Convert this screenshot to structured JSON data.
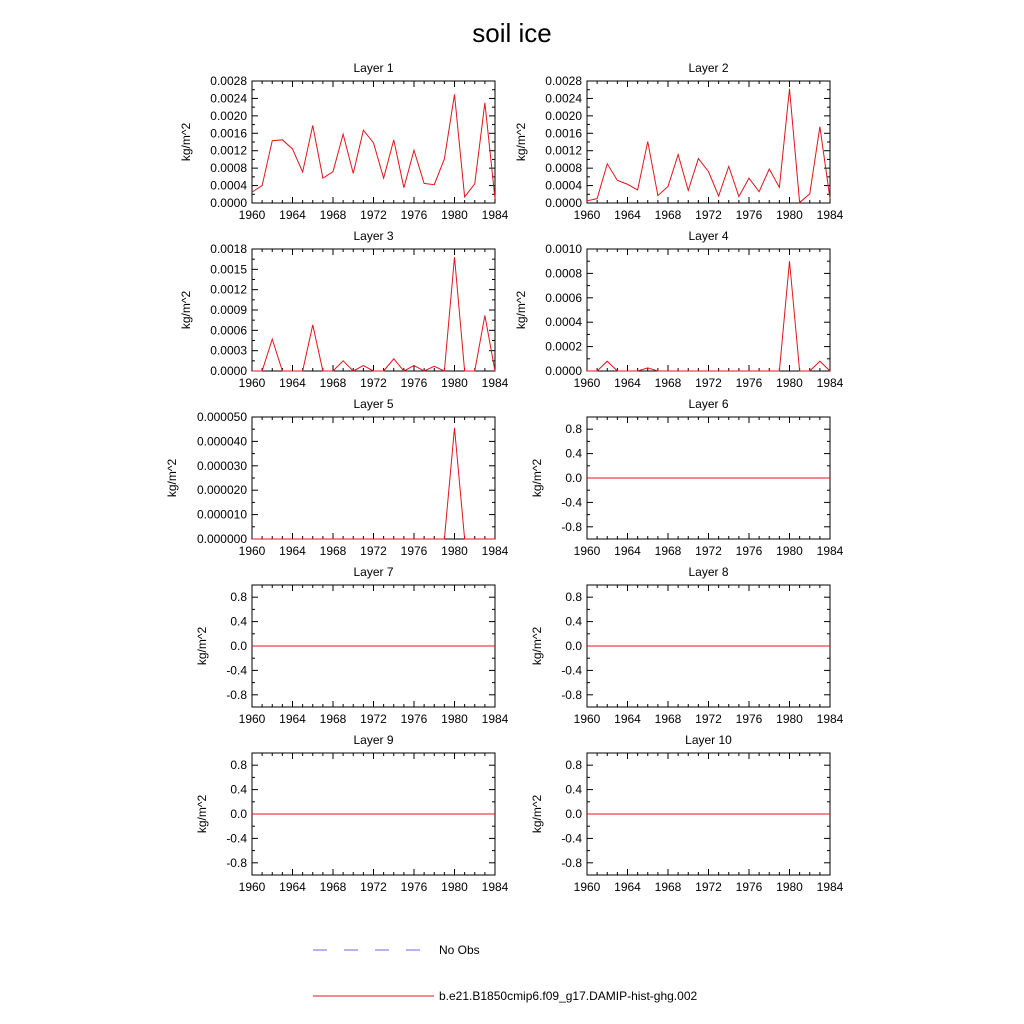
{
  "figure": {
    "title": "soil ice",
    "legend": [
      {
        "label": "No Obs",
        "color": "#6b6bd6",
        "dash": true
      },
      {
        "label": "b.e21.B1850cmip6.f09_g17.DAMIP-hist-ghg.002",
        "color": "#e0151c",
        "dash": false
      }
    ]
  },
  "chart_data": [
    {
      "type": "line",
      "title": "Layer 1",
      "ylabel": "kg/m^2",
      "xlim": [
        1960,
        1984
      ],
      "xticks": [
        1960,
        1964,
        1968,
        1972,
        1976,
        1980,
        1984
      ],
      "ylim": [
        0,
        0.0028
      ],
      "yticks": [
        0,
        0.0004,
        0.0008,
        0.0012,
        0.0016,
        0.002,
        0.0024,
        0.0028
      ],
      "ydecimals": 4,
      "series": [
        {
          "values": [
            0.00025,
            0.0004,
            0.00143,
            0.00145,
            0.00124,
            0.00071,
            0.00178,
            0.00057,
            0.00072,
            0.00158,
            0.00068,
            0.00167,
            0.00138,
            0.00057,
            0.00145,
            0.00035,
            0.00121,
            0.00045,
            0.00042,
            0.00101,
            0.00249,
            0.00014,
            0.00044,
            0.0023,
            0.0001
          ]
        }
      ]
    },
    {
      "type": "line",
      "title": "Layer 2",
      "ylabel": "kg/m^2",
      "xlim": [
        1960,
        1984
      ],
      "xticks": [
        1960,
        1964,
        1968,
        1972,
        1976,
        1980,
        1984
      ],
      "ylim": [
        0,
        0.0028
      ],
      "yticks": [
        0,
        0.0004,
        0.0008,
        0.0012,
        0.0016,
        0.002,
        0.0024,
        0.0028
      ],
      "ydecimals": 4,
      "series": [
        {
          "values": [
            5e-05,
            0.0001,
            0.0009,
            0.00052,
            0.00043,
            0.0003,
            0.00141,
            0.00017,
            0.00038,
            0.00111,
            0.00029,
            0.00102,
            0.00072,
            0.00016,
            0.00084,
            0.00015,
            0.00057,
            0.00026,
            0.00078,
            0.00036,
            0.00262,
            1e-05,
            0.00021,
            0.00175,
            0.0001
          ]
        }
      ]
    },
    {
      "type": "line",
      "title": "Layer 3",
      "ylabel": "kg/m^2",
      "xlim": [
        1960,
        1984
      ],
      "xticks": [
        1960,
        1964,
        1968,
        1972,
        1976,
        1980,
        1984
      ],
      "ylim": [
        0,
        0.0018
      ],
      "yticks": [
        0,
        0.0003,
        0.0006,
        0.0009,
        0.0012,
        0.0015,
        0.0018
      ],
      "ydecimals": 4,
      "series": [
        {
          "values": [
            0,
            0,
            0.00047,
            0,
            0,
            0,
            0.00068,
            0,
            0,
            0.00015,
            0,
            8e-05,
            0,
            0,
            0.00018,
            0,
            8e-05,
            0,
            7e-05,
            0,
            0.00168,
            0,
            0,
            0.00082,
            0
          ]
        }
      ]
    },
    {
      "type": "line",
      "title": "Layer 4",
      "ylabel": "kg/m^2",
      "xlim": [
        1960,
        1984
      ],
      "xticks": [
        1960,
        1964,
        1968,
        1972,
        1976,
        1980,
        1984
      ],
      "ylim": [
        0,
        0.001
      ],
      "yticks": [
        0,
        0.0002,
        0.0004,
        0.0006,
        0.0008,
        0.001
      ],
      "ydecimals": 4,
      "series": [
        {
          "values": [
            0,
            0,
            8e-05,
            0,
            0,
            0,
            2.5e-05,
            0,
            0,
            0,
            0,
            0,
            0,
            0,
            0,
            0,
            0,
            0,
            0,
            0,
            0.0009,
            0,
            0,
            8e-05,
            0
          ]
        }
      ]
    },
    {
      "type": "line",
      "title": "Layer 5",
      "ylabel": "kg/m^2",
      "xlim": [
        1960,
        1984
      ],
      "xticks": [
        1960,
        1964,
        1968,
        1972,
        1976,
        1980,
        1984
      ],
      "ylim": [
        0,
        5e-05
      ],
      "yticks": [
        0,
        1e-05,
        2e-05,
        3e-05,
        4e-05,
        5e-05
      ],
      "ydecimals": 6,
      "series": [
        {
          "values": [
            0,
            0,
            0,
            0,
            0,
            0,
            0,
            0,
            0,
            0,
            0,
            0,
            0,
            0,
            0,
            0,
            0,
            0,
            0,
            0,
            4.55e-05,
            0,
            0,
            0,
            0
          ]
        }
      ]
    },
    {
      "type": "line",
      "title": "Layer 6",
      "ylabel": "kg/m^2",
      "xlim": [
        1960,
        1984
      ],
      "xticks": [
        1960,
        1964,
        1968,
        1972,
        1976,
        1980,
        1984
      ],
      "ylim": [
        -1,
        1
      ],
      "yticks": [
        -0.8,
        -0.4,
        0,
        0.4,
        0.8
      ],
      "ydecimals": 1,
      "series": [
        {
          "values": [
            0,
            0,
            0,
            0,
            0,
            0,
            0,
            0,
            0,
            0,
            0,
            0,
            0,
            0,
            0,
            0,
            0,
            0,
            0,
            0,
            0,
            0,
            0,
            0,
            0
          ]
        }
      ]
    },
    {
      "type": "line",
      "title": "Layer 7",
      "ylabel": "kg/m^2",
      "xlim": [
        1960,
        1984
      ],
      "xticks": [
        1960,
        1964,
        1968,
        1972,
        1976,
        1980,
        1984
      ],
      "ylim": [
        -1,
        1
      ],
      "yticks": [
        -0.8,
        -0.4,
        0,
        0.4,
        0.8
      ],
      "ydecimals": 1,
      "series": [
        {
          "values": [
            0,
            0,
            0,
            0,
            0,
            0,
            0,
            0,
            0,
            0,
            0,
            0,
            0,
            0,
            0,
            0,
            0,
            0,
            0,
            0,
            0,
            0,
            0,
            0,
            0
          ]
        }
      ]
    },
    {
      "type": "line",
      "title": "Layer 8",
      "ylabel": "kg/m^2",
      "xlim": [
        1960,
        1984
      ],
      "xticks": [
        1960,
        1964,
        1968,
        1972,
        1976,
        1980,
        1984
      ],
      "ylim": [
        -1,
        1
      ],
      "yticks": [
        -0.8,
        -0.4,
        0,
        0.4,
        0.8
      ],
      "ydecimals": 1,
      "series": [
        {
          "values": [
            0,
            0,
            0,
            0,
            0,
            0,
            0,
            0,
            0,
            0,
            0,
            0,
            0,
            0,
            0,
            0,
            0,
            0,
            0,
            0,
            0,
            0,
            0,
            0,
            0
          ]
        }
      ]
    },
    {
      "type": "line",
      "title": "Layer 9",
      "ylabel": "kg/m^2",
      "xlim": [
        1960,
        1984
      ],
      "xticks": [
        1960,
        1964,
        1968,
        1972,
        1976,
        1980,
        1984
      ],
      "ylim": [
        -1,
        1
      ],
      "yticks": [
        -0.8,
        -0.4,
        0,
        0.4,
        0.8
      ],
      "ydecimals": 1,
      "series": [
        {
          "values": [
            0,
            0,
            0,
            0,
            0,
            0,
            0,
            0,
            0,
            0,
            0,
            0,
            0,
            0,
            0,
            0,
            0,
            0,
            0,
            0,
            0,
            0,
            0,
            0,
            0
          ]
        }
      ]
    },
    {
      "type": "line",
      "title": "Layer 10",
      "ylabel": "kg/m^2",
      "xlim": [
        1960,
        1984
      ],
      "xticks": [
        1960,
        1964,
        1968,
        1972,
        1976,
        1980,
        1984
      ],
      "ylim": [
        -1,
        1
      ],
      "yticks": [
        -0.8,
        -0.4,
        0,
        0.4,
        0.8
      ],
      "ydecimals": 1,
      "series": [
        {
          "values": [
            0,
            0,
            0,
            0,
            0,
            0,
            0,
            0,
            0,
            0,
            0,
            0,
            0,
            0,
            0,
            0,
            0,
            0,
            0,
            0,
            0,
            0,
            0,
            0,
            0
          ]
        }
      ]
    }
  ]
}
